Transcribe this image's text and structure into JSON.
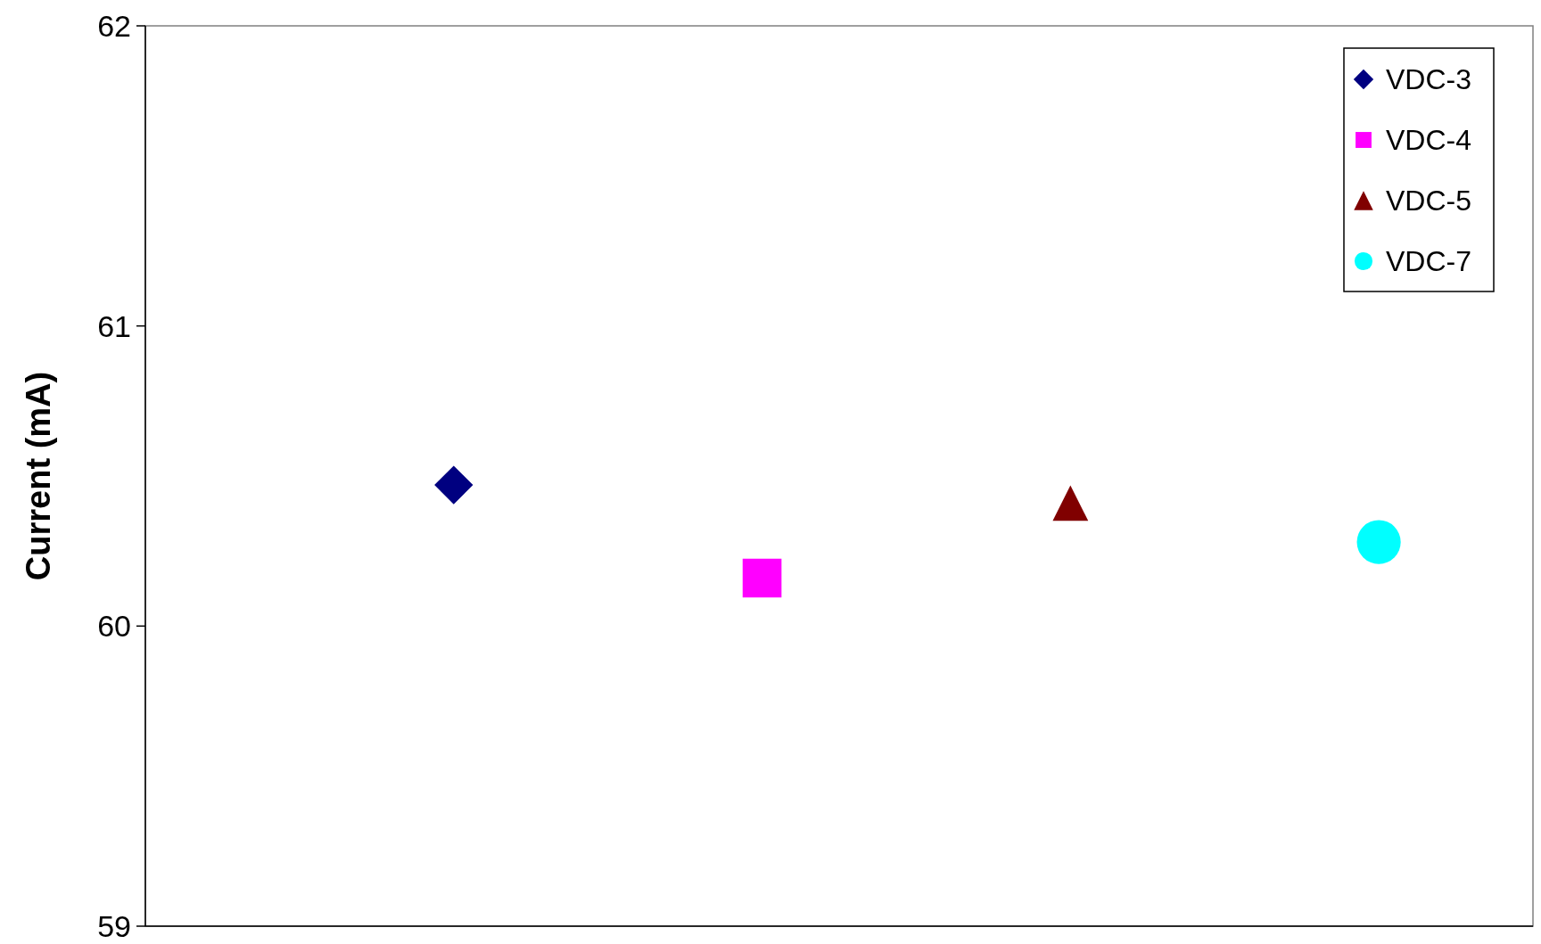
{
  "chart_data": {
    "type": "scatter",
    "ylabel": "Current (mA)",
    "categories": [
      null,
      null,
      null,
      null
    ],
    "series": [
      {
        "name": "VDC-3",
        "color": "#000080",
        "marker": "diamond",
        "values": [
          60.47,
          null,
          null,
          null
        ]
      },
      {
        "name": "VDC-4",
        "color": "#ff00ff",
        "marker": "square",
        "values": [
          null,
          60.16,
          null,
          null
        ]
      },
      {
        "name": "VDC-5",
        "color": "#800000",
        "marker": "triangle",
        "values": [
          null,
          null,
          60.41,
          null
        ]
      },
      {
        "name": "VDC-7",
        "color": "#00ffff",
        "marker": "circle",
        "values": [
          null,
          null,
          null,
          60.28
        ]
      }
    ],
    "ylim": [
      59,
      62
    ],
    "yticks": [
      59,
      60,
      61,
      62
    ],
    "tick_labels": "y",
    "grid": false,
    "legend": "top right"
  }
}
